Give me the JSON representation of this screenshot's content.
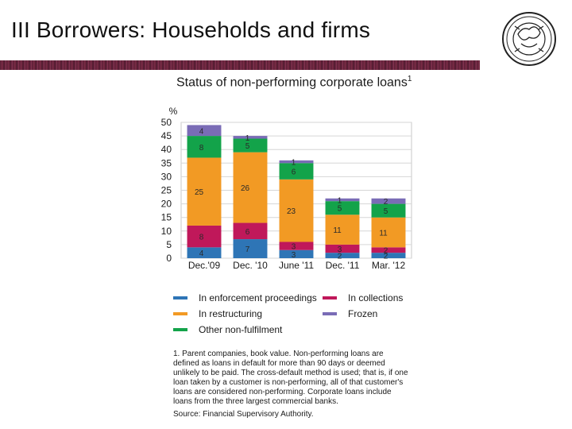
{
  "slide": {
    "title": "III Borrowers: Households and firms"
  },
  "chart_data": {
    "type": "bar",
    "stacked": true,
    "title": "Status of non-performing corporate loans",
    "title_superscript": "1",
    "ylabel": "%",
    "ylim": [
      0,
      50
    ],
    "yticks": [
      0,
      5,
      10,
      15,
      20,
      25,
      30,
      35,
      40,
      45,
      50
    ],
    "grid": true,
    "legend_position": "bottom",
    "categories": [
      "Dec.'09",
      "Dec. '10",
      "June '11",
      "Dec. '11",
      "Mar. '12"
    ],
    "series": [
      {
        "name": "In enforcement proceedings",
        "color": "#2e75b6",
        "values": [
          4,
          7,
          3,
          2,
          2
        ]
      },
      {
        "name": "In collections",
        "color": "#c0185a",
        "values": [
          8,
          6,
          3,
          3,
          2
        ]
      },
      {
        "name": "In restructuring",
        "color": "#f29a24",
        "values": [
          25,
          26,
          23,
          11,
          11
        ]
      },
      {
        "name": "Other non-fulfilment",
        "color": "#13a34a",
        "values": [
          8,
          5,
          6,
          5,
          5
        ]
      },
      {
        "name": "Frozen",
        "color": "#7a6cb6",
        "values": [
          4,
          1,
          1,
          1,
          2
        ]
      }
    ]
  },
  "footnote": {
    "text": "1. Parent companies, book value. Non-performing loans are defined as loans in default for more than 90 days or deemed unlikely to be paid. The cross-default method is used; that is, if one loan taken by a customer is non-performing, all of that customer's loans are considered non-performing. Corporate loans include loans from the three largest commercial banks.",
    "source": "Source: Financial Supervisory Authority."
  }
}
